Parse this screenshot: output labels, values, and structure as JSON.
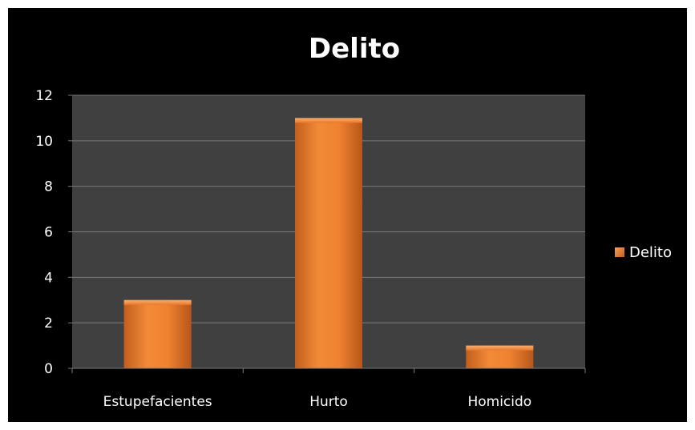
{
  "chart_data": {
    "type": "bar",
    "title": "Delito",
    "categories": [
      "Estupefacientes",
      "Hurto",
      "Homicido"
    ],
    "series": [
      {
        "name": "Delito",
        "values": [
          3,
          11,
          1
        ],
        "color": "#e8782a"
      }
    ],
    "ylim": [
      0,
      12
    ],
    "yticks": [
      0,
      2,
      4,
      6,
      8,
      10,
      12
    ],
    "grid": true,
    "legend_position": "right",
    "colors": {
      "background": "#000000",
      "plot_area": "#404040",
      "grid": "#7a7a7a",
      "text": "#ffffff",
      "bar": "#e8782a",
      "bar_dark": "#b8561a"
    }
  }
}
